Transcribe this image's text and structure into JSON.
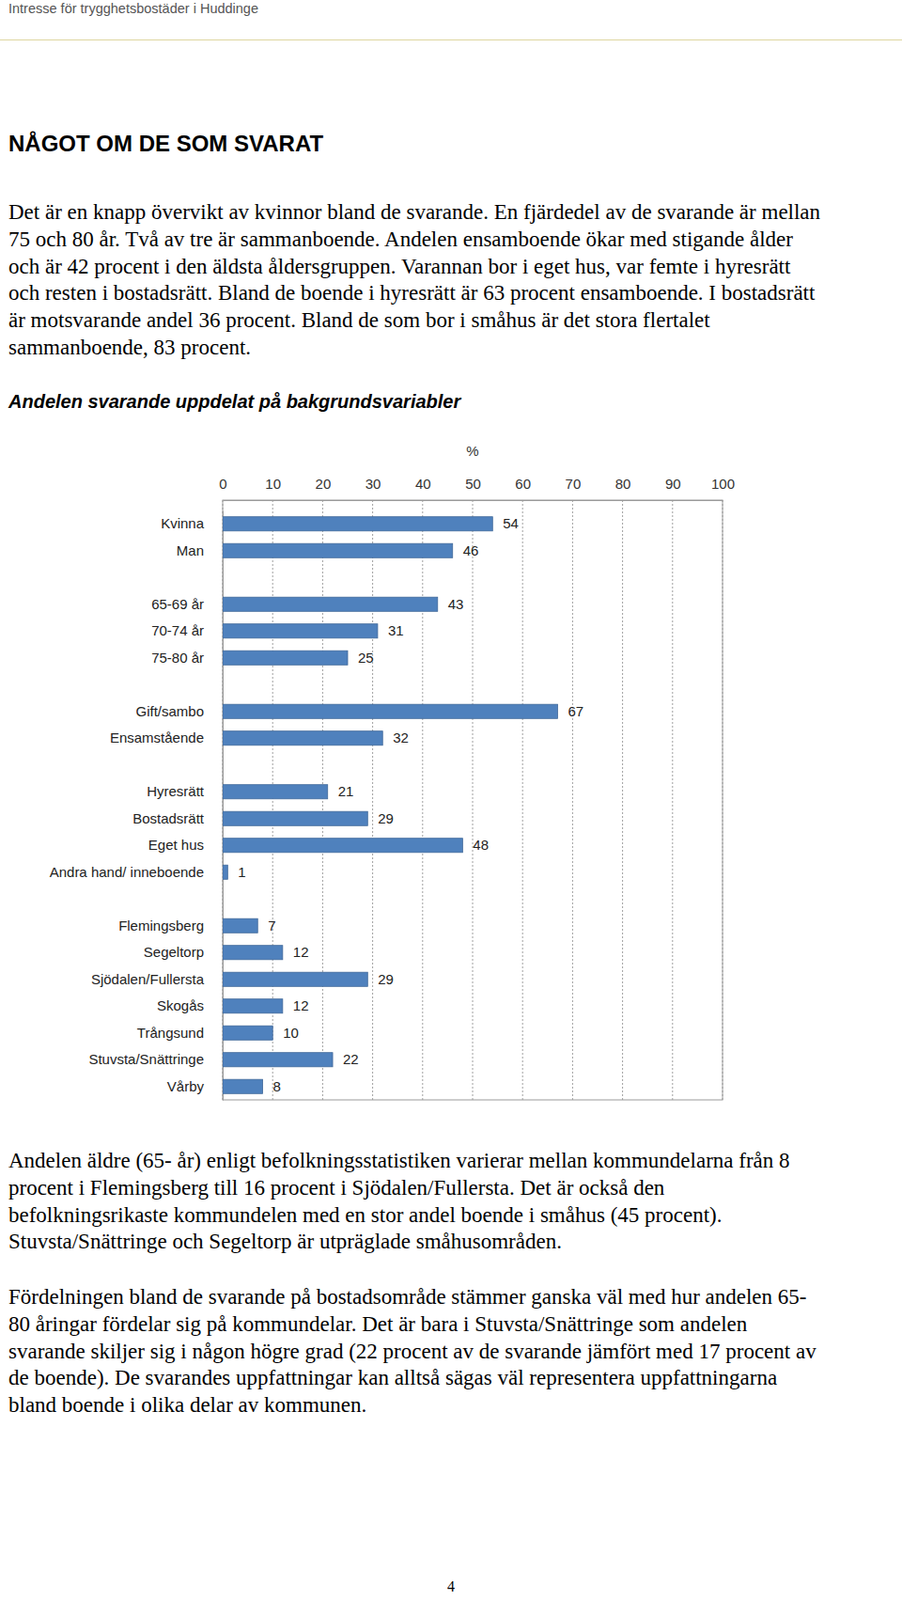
{
  "header": {
    "title": "Intresse för trygghetsbostäder i Huddinge"
  },
  "heading": "NÅGOT OM DE SOM SVARAT",
  "intro": [
    "Det är en knapp övervikt av kvinnor bland de svarande. En fjärdedel av de svarande är mellan",
    "75 och 80 år. Två av tre är sammanboende. Andelen ensamboende ökar med stigande ålder",
    "och är 42 procent i den äldsta åldersgruppen. Varannan bor i eget hus, var femte i hyresrätt",
    "och resten i bostadsrätt. Bland de boende i hyresrätt är 63 procent ensamboende. I bostadsrätt",
    "är motsvarande andel 36 procent. Bland de som bor i småhus är det stora flertalet",
    "sammanboende, 83 procent."
  ],
  "chart_data": {
    "type": "bar",
    "orientation": "horizontal",
    "title": "Andelen svarande uppdelat på bakgrundsvariabler",
    "x_label": "%",
    "groups": [
      {
        "categories": [
          "Kvinna",
          "Man"
        ],
        "values": [
          54,
          46
        ]
      },
      {
        "categories": [
          "65-69 år",
          "70-74 år",
          "75-80 år"
        ],
        "values": [
          43,
          31,
          25
        ]
      },
      {
        "categories": [
          "Gift/sambo",
          "Ensamstående"
        ],
        "values": [
          67,
          32
        ]
      },
      {
        "categories": [
          "Hyresrätt",
          "Bostadsrätt",
          "Eget hus",
          "Andra hand/ inneboende"
        ],
        "values": [
          21,
          29,
          48,
          1
        ]
      },
      {
        "categories": [
          "Flemingsberg",
          "Segeltorp",
          "Sjödalen/Fullersta",
          "Skogås",
          "Trångsund",
          "Stuvsta/Snättringe",
          "Vårby"
        ],
        "values": [
          7,
          12,
          29,
          12,
          10,
          22,
          8
        ]
      }
    ],
    "color": "#4f81bd",
    "xlim": [
      0,
      100
    ],
    "xticks": [
      0,
      10,
      20,
      30,
      40,
      50,
      60,
      70,
      80,
      90,
      100
    ],
    "grid": true,
    "data_labels": true
  },
  "paragraphs": [
    [
      "Andelen äldre (65- år) enligt befolkningsstatistiken varierar mellan kommundelarna från 8",
      "procent i Flemingsberg till 16 procent i Sjödalen/Fullersta. Det är också den",
      "befolkningsrikaste kommundelen med en stor andel boende i småhus (45 procent).",
      "Stuvsta/Snättringe och Segeltorp är utpräglade småhusområden."
    ],
    [
      "Fördelningen bland de svarande på bostadsområde stämmer ganska väl med hur andelen 65-",
      "80 åringar fördelar sig på kommundelar. Det är bara i Stuvsta/Snättringe som andelen",
      "svarande skiljer sig i någon högre grad (22 procent av de svarande jämfört med 17 procent av",
      "de boende). De svarandes uppfattningar kan alltså sägas väl representera uppfattningarna",
      "bland boende i olika delar av kommunen."
    ]
  ],
  "page_number": 4
}
